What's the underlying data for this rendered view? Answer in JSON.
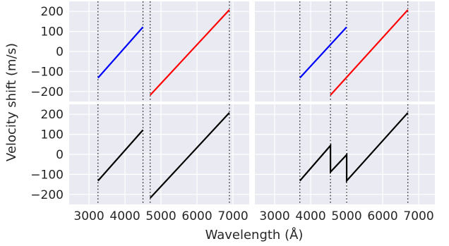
{
  "figure": {
    "ylabel": "Velocity shift (m/s)",
    "xlabel": "Wavelength (Å)"
  },
  "colors": {
    "panel_bg": "#EAEAF2",
    "grid": "#FFFFFF",
    "text": "#262626",
    "marker_line": "#000000",
    "blue": "#0000FF",
    "red": "#FF0000",
    "black": "#000000"
  },
  "chart_data": [
    {
      "type": "line",
      "panel": "top-left",
      "xlim": [
        2450,
        7450
      ],
      "ylim": [
        -250,
        250
      ],
      "xticks": [
        3000,
        4000,
        5000,
        6000,
        7000
      ],
      "yticks": [
        -200,
        -100,
        0,
        100,
        200
      ],
      "show_xtick_labels": false,
      "show_ytick_labels": true,
      "grid": true,
      "vlines": [
        3250,
        4500,
        4700,
        6900
      ],
      "series": [
        {
          "color": "blue",
          "points": [
            [
              3250,
              -132
            ],
            [
              4500,
              122
            ]
          ]
        },
        {
          "color": "red",
          "points": [
            [
              4700,
              -218
            ],
            [
              6900,
              208
            ]
          ]
        }
      ]
    },
    {
      "type": "line",
      "panel": "top-right",
      "xlim": [
        2450,
        7450
      ],
      "ylim": [
        -250,
        250
      ],
      "xticks": [
        3000,
        4000,
        5000,
        6000,
        7000
      ],
      "yticks": [
        -200,
        -100,
        0,
        100,
        200
      ],
      "show_xtick_labels": false,
      "show_ytick_labels": false,
      "grid": true,
      "vlines": [
        3700,
        4550,
        5000,
        6700
      ],
      "series": [
        {
          "color": "blue",
          "points": [
            [
              3700,
              -132
            ],
            [
              5000,
              122
            ]
          ]
        },
        {
          "color": "red",
          "points": [
            [
              4550,
              -218
            ],
            [
              6700,
              208
            ]
          ]
        }
      ]
    },
    {
      "type": "line",
      "panel": "bottom-left",
      "xlim": [
        2450,
        7450
      ],
      "ylim": [
        -250,
        250
      ],
      "xticks": [
        3000,
        4000,
        5000,
        6000,
        7000
      ],
      "yticks": [
        -200,
        -100,
        0,
        100,
        200
      ],
      "xtick_labels": [
        "3000",
        "4000",
        "5000",
        "6000",
        "7000"
      ],
      "ytick_labels": [
        "−200",
        "−100",
        "0",
        "100",
        "200"
      ],
      "show_xtick_labels": true,
      "show_ytick_labels": true,
      "grid": true,
      "vlines": [
        3250,
        4500,
        4700,
        6900
      ],
      "series": [
        {
          "color": "black",
          "points": [
            [
              3250,
              -132
            ],
            [
              4500,
              122
            ]
          ]
        },
        {
          "color": "black",
          "points": [
            [
              4700,
              -218
            ],
            [
              6900,
              208
            ]
          ]
        }
      ]
    },
    {
      "type": "line",
      "panel": "bottom-right",
      "xlim": [
        2450,
        7450
      ],
      "ylim": [
        -250,
        250
      ],
      "xticks": [
        3000,
        4000,
        5000,
        6000,
        7000
      ],
      "yticks": [
        -200,
        -100,
        0,
        100,
        200
      ],
      "xtick_labels": [
        "3000",
        "4000",
        "5000",
        "6000",
        "7000"
      ],
      "show_xtick_labels": true,
      "show_ytick_labels": false,
      "grid": true,
      "vlines": [
        3700,
        4550,
        5000,
        6700
      ],
      "series": [
        {
          "color": "black",
          "points": [
            [
              3700,
              -132
            ],
            [
              4550,
              44
            ],
            [
              4550,
              -88
            ],
            [
              5000,
              -2
            ],
            [
              5000,
              -132
            ],
            [
              6700,
              208
            ]
          ]
        }
      ]
    }
  ]
}
